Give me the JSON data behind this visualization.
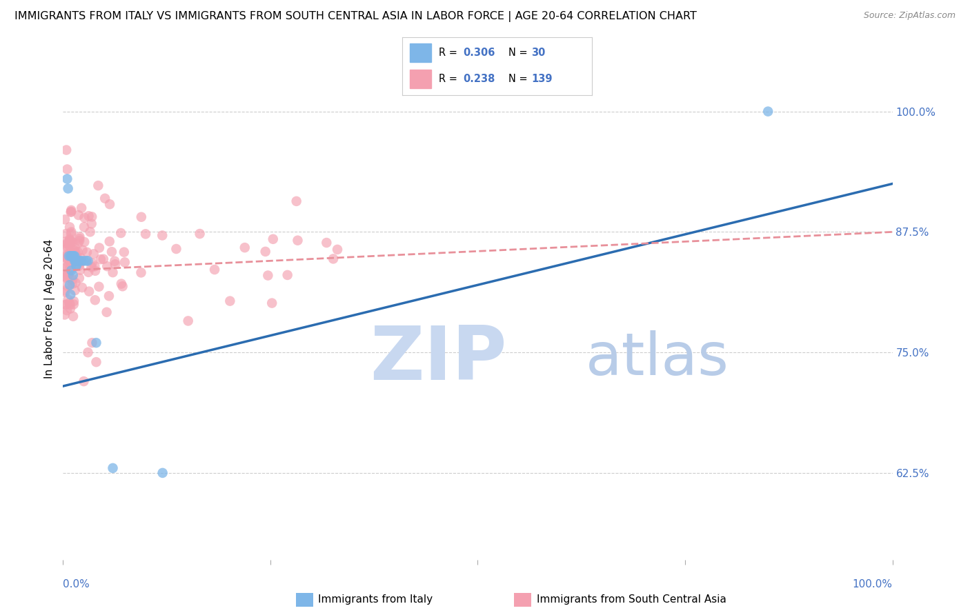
{
  "title": "IMMIGRANTS FROM ITALY VS IMMIGRANTS FROM SOUTH CENTRAL ASIA IN LABOR FORCE | AGE 20-64 CORRELATION CHART",
  "source": "Source: ZipAtlas.com",
  "ylabel": "In Labor Force | Age 20-64",
  "ytick_labels": [
    "62.5%",
    "75.0%",
    "87.5%",
    "100.0%"
  ],
  "ytick_values": [
    0.625,
    0.75,
    0.875,
    1.0
  ],
  "xmin": 0.0,
  "xmax": 1.0,
  "ymin": 0.535,
  "ymax": 1.055,
  "italy_R": 0.306,
  "italy_N": 30,
  "sca_R": 0.238,
  "sca_N": 139,
  "italy_color": "#7EB6E8",
  "sca_color": "#F4A0B0",
  "italy_line_color": "#2B6CB0",
  "sca_line_color": "#E8909A",
  "background_color": "#ffffff",
  "grid_color": "#cccccc",
  "title_fontsize": 11.5,
  "axis_label_color": "#4472c4",
  "italy_line_start_y": 0.715,
  "italy_line_end_y": 0.925,
  "sca_line_start_y": 0.835,
  "sca_line_end_y": 0.875
}
